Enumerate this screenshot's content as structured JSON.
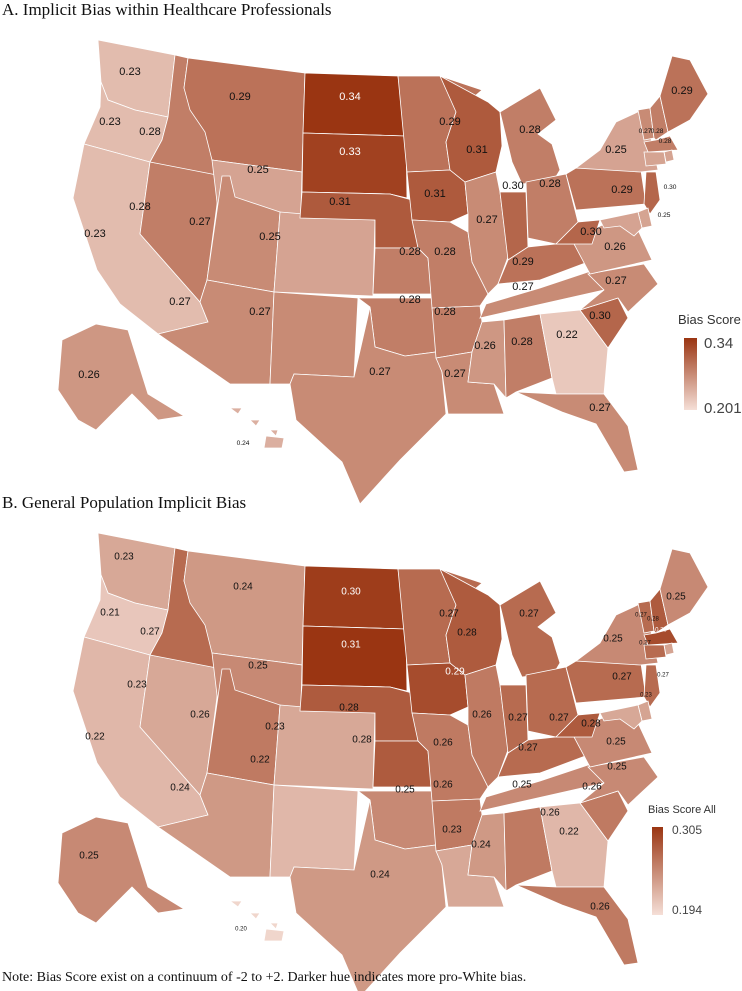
{
  "panels": [
    {
      "title": "A. Implicit Bias within Healthcare Professionals",
      "legend": {
        "title": "Bias Score",
        "max_label": "0.34",
        "min_label": "0.201",
        "max_value": 0.34,
        "min_value": 0.201,
        "color_high": "#9a3512",
        "color_low": "#f5dfd7"
      },
      "states": {
        "WA": 0.23,
        "OR": 0.23,
        "CA": 0.23,
        "NV": 0.28,
        "ID": 0.28,
        "MT": 0.29,
        "WY": 0.25,
        "UT": 0.27,
        "AZ": 0.27,
        "CO": 0.25,
        "NM": 0.27,
        "ND": 0.34,
        "SD": 0.33,
        "NE": 0.31,
        "KS": 0.28,
        "OK": 0.28,
        "TX": 0.27,
        "MN": 0.29,
        "IA": 0.31,
        "MO": 0.28,
        "AR": 0.28,
        "LA": 0.27,
        "WI": 0.31,
        "IL": 0.27,
        "MI": 0.28,
        "IN": 0.3,
        "OH": 0.28,
        "KY": 0.29,
        "TN": 0.27,
        "MS": 0.26,
        "AL": 0.28,
        "GA": 0.22,
        "FL": 0.27,
        "SC": 0.3,
        "NC": 0.27,
        "VA": 0.26,
        "WV": 0.3,
        "PA": 0.29,
        "NY": 0.25,
        "ME": 0.29,
        "AK": 0.26,
        "HI": 0.24,
        "VT": 0.27,
        "NH": 0.28,
        "MA": 0.28,
        "NJ": 0.3,
        "MD": 0.25
      }
    },
    {
      "title": "B. General Population Implicit Bias",
      "legend": {
        "title": "Bias Score All",
        "max_label": "0.305",
        "min_label": "0.194",
        "max_value": 0.305,
        "min_value": 0.194,
        "color_high": "#9a3512",
        "color_low": "#f5dfd7"
      },
      "states": {
        "WA": 0.23,
        "OR": 0.21,
        "CA": 0.22,
        "NV": 0.23,
        "ID": 0.27,
        "MT": 0.24,
        "WY": 0.25,
        "UT": 0.26,
        "AZ": 0.24,
        "CO": 0.23,
        "NM": 0.22,
        "ND": 0.3,
        "SD": 0.31,
        "NE": 0.28,
        "KS": 0.28,
        "OK": 0.25,
        "TX": 0.24,
        "MN": 0.27,
        "IA": 0.29,
        "MO": 0.26,
        "AR": 0.26,
        "LA": 0.23,
        "WI": 0.28,
        "IL": 0.26,
        "MI": 0.27,
        "IN": 0.27,
        "OH": 0.27,
        "KY": 0.27,
        "TN": 0.25,
        "MS": 0.24,
        "AL": 0.26,
        "GA": 0.22,
        "FL": 0.26,
        "SC": 0.26,
        "NC": 0.25,
        "VA": 0.25,
        "WV": 0.28,
        "PA": 0.27,
        "NY": 0.25,
        "ME": 0.25,
        "AK": 0.25,
        "HI": 0.2,
        "VT": 0.27,
        "NH": 0.28,
        "MA": 0.29,
        "CT": 0.27,
        "NJ": 0.27,
        "MD": 0.23
      }
    }
  ],
  "note": "Note: Bias Score exist on a continuum of -2 to +2. Darker hue indicates more pro-White bias."
}
